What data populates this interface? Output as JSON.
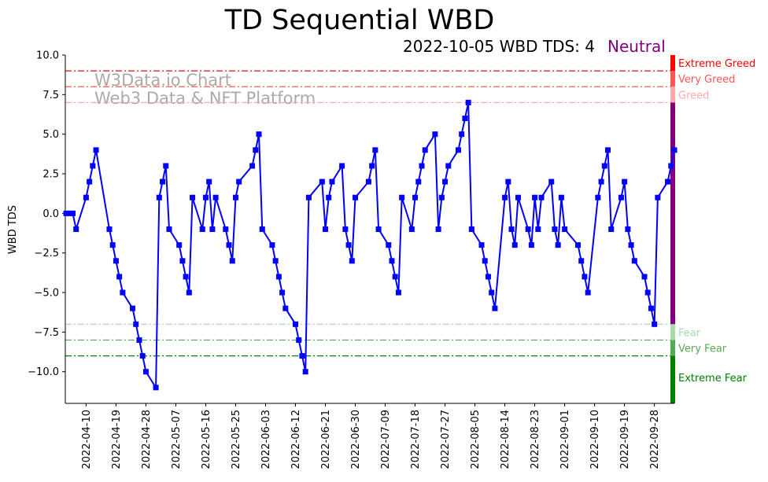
{
  "chart_data": {
    "type": "line",
    "title": "TD Sequential WBD",
    "subtitle": "2022-10-05 WBD TDS: 4",
    "status": "Neutral",
    "ylabel": "WBD TDS",
    "xlabel": "",
    "ylim": [
      -12,
      10
    ],
    "xlim": [
      "2022-04-04",
      "2022-10-05"
    ],
    "yticks": [
      "10.0",
      "7.5",
      "5.0",
      "2.5",
      "0.0",
      "−2.5",
      "−5.0",
      "−7.5",
      "−10.0"
    ],
    "ytick_values": [
      10,
      7.5,
      5,
      2.5,
      0,
      -2.5,
      -5,
      -7.5,
      -10
    ],
    "xticks": [
      "2022-04-10",
      "2022-04-19",
      "2022-04-28",
      "2022-05-07",
      "2022-05-16",
      "2022-05-25",
      "2022-06-03",
      "2022-06-12",
      "2022-06-21",
      "2022-06-30",
      "2022-07-09",
      "2022-07-18",
      "2022-07-27",
      "2022-08-05",
      "2022-08-14",
      "2022-08-23",
      "2022-09-01",
      "2022-09-10",
      "2022-09-19",
      "2022-09-28"
    ],
    "watermark": [
      "W3Data.io Chart",
      "Web3 Data & NFT Platform"
    ],
    "series": [
      {
        "name": "WBD TDS",
        "color": "#0000ff",
        "x": [
          "2022-04-05",
          "2022-04-06",
          "2022-04-07",
          "2022-04-08",
          "2022-04-11",
          "2022-04-12",
          "2022-04-13",
          "2022-04-14",
          "2022-04-18",
          "2022-04-19",
          "2022-04-20",
          "2022-04-21",
          "2022-04-22",
          "2022-04-25",
          "2022-04-26",
          "2022-04-27",
          "2022-04-28",
          "2022-04-29",
          "2022-05-02",
          "2022-05-03",
          "2022-05-04",
          "2022-05-05",
          "2022-05-06",
          "2022-05-09",
          "2022-05-10",
          "2022-05-11",
          "2022-05-12",
          "2022-05-13",
          "2022-05-16",
          "2022-05-17",
          "2022-05-18",
          "2022-05-19",
          "2022-05-20",
          "2022-05-23",
          "2022-05-24",
          "2022-05-25",
          "2022-05-26",
          "2022-05-27",
          "2022-05-31",
          "2022-06-01",
          "2022-06-02",
          "2022-06-03",
          "2022-06-06",
          "2022-06-07",
          "2022-06-08",
          "2022-06-09",
          "2022-06-10",
          "2022-06-13",
          "2022-06-14",
          "2022-06-15",
          "2022-06-16",
          "2022-06-17",
          "2022-06-21",
          "2022-06-22",
          "2022-06-23",
          "2022-06-24",
          "2022-06-27",
          "2022-06-28",
          "2022-06-29",
          "2022-06-30",
          "2022-07-01",
          "2022-07-05",
          "2022-07-06",
          "2022-07-07",
          "2022-07-08",
          "2022-07-11",
          "2022-07-12",
          "2022-07-13",
          "2022-07-14",
          "2022-07-15",
          "2022-07-18",
          "2022-07-19",
          "2022-07-20",
          "2022-07-21",
          "2022-07-22",
          "2022-07-25",
          "2022-07-26",
          "2022-07-27",
          "2022-07-28",
          "2022-07-29",
          "2022-08-01",
          "2022-08-02",
          "2022-08-03",
          "2022-08-04",
          "2022-08-05",
          "2022-08-08",
          "2022-08-09",
          "2022-08-10",
          "2022-08-11",
          "2022-08-12",
          "2022-08-15",
          "2022-08-16",
          "2022-08-17",
          "2022-08-18",
          "2022-08-19",
          "2022-08-22",
          "2022-08-23",
          "2022-08-24",
          "2022-08-25",
          "2022-08-26",
          "2022-08-29",
          "2022-08-30",
          "2022-08-31",
          "2022-09-01",
          "2022-09-02",
          "2022-09-06",
          "2022-09-07",
          "2022-09-08",
          "2022-09-09",
          "2022-09-12",
          "2022-09-13",
          "2022-09-14",
          "2022-09-15",
          "2022-09-16",
          "2022-09-19",
          "2022-09-20",
          "2022-09-21",
          "2022-09-22",
          "2022-09-23",
          "2022-09-26",
          "2022-09-27",
          "2022-09-28",
          "2022-09-29",
          "2022-09-30",
          "2022-10-03",
          "2022-10-04",
          "2022-10-05"
        ],
        "y": [
          0,
          0,
          0,
          -1,
          1,
          2,
          3,
          4,
          -1,
          -2,
          -3,
          -4,
          -5,
          -6,
          -7,
          -8,
          -9,
          -10,
          -11,
          1,
          2,
          3,
          -1,
          -2,
          -3,
          -4,
          -5,
          1,
          -1,
          1,
          2,
          -1,
          1,
          -1,
          -2,
          -3,
          1,
          2,
          3,
          4,
          5,
          -1,
          -2,
          -3,
          -4,
          -5,
          -6,
          -7,
          -8,
          -9,
          -10,
          1,
          2,
          -1,
          1,
          2,
          3,
          -1,
          -2,
          -3,
          1,
          2,
          3,
          4,
          -1,
          -2,
          -3,
          -4,
          -5,
          1,
          -1,
          1,
          2,
          3,
          4,
          5,
          -1,
          1,
          2,
          3,
          4,
          5,
          6,
          7,
          -1,
          -2,
          -3,
          -4,
          -5,
          -6,
          1,
          2,
          -1,
          -2,
          1,
          -1,
          -2,
          1,
          -1,
          1,
          2,
          -1,
          -2,
          1,
          -1,
          -2,
          -3,
          -4,
          -5,
          1,
          2,
          3,
          4,
          -1,
          1,
          2,
          -1,
          -2,
          -3,
          -4,
          -5,
          -6,
          -7,
          1,
          2,
          3,
          4
        ]
      }
    ],
    "levels": [
      {
        "label": "Extreme Greed",
        "value": 9,
        "color": "#ff0000",
        "band": [
          9,
          10
        ]
      },
      {
        "label": "Very Greed",
        "value": 8,
        "color": "#ff5555",
        "band": [
          8,
          9
        ]
      },
      {
        "label": "Greed",
        "value": 7,
        "color": "#ffaaaa",
        "band": [
          7,
          8
        ]
      },
      {
        "label": "Neutral",
        "value": null,
        "color": "#800080",
        "band": [
          -7,
          7
        ]
      },
      {
        "label": "Fear",
        "value": -7,
        "color": "#aad8aa",
        "band": [
          -8,
          -7
        ]
      },
      {
        "label": "Very Fear",
        "value": -8,
        "color": "#55aa55",
        "band": [
          -9,
          -8
        ]
      },
      {
        "label": "Extreme Fear",
        "value": -9,
        "color": "#008000",
        "band": [
          -12,
          -9
        ]
      }
    ]
  }
}
